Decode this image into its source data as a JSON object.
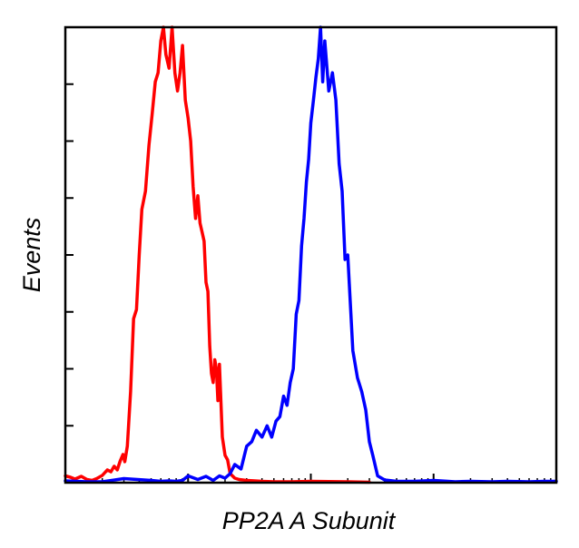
{
  "chart_data": {
    "type": "line",
    "title": "",
    "xlabel": "PP2A A Subunit",
    "ylabel": "Events",
    "x_scale": "log",
    "xlim": [
      1,
      10000
    ],
    "ylim": [
      0,
      100
    ],
    "grid": false,
    "legend": "none",
    "series": [
      {
        "color": "#ff0000",
        "x": [
          1,
          1.1,
          1.2,
          1.35,
          1.5,
          1.65,
          1.8,
          2,
          2.2,
          2.35,
          2.5,
          2.65,
          2.8,
          2.95,
          3.05,
          3.2,
          3.4,
          3.6,
          3.8,
          4,
          4.2,
          4.5,
          4.8,
          5.1,
          5.4,
          5.7,
          6,
          6.3,
          6.6,
          7,
          7.4,
          7.8,
          8.2,
          8.6,
          9,
          9.5,
          10,
          10.5,
          11,
          11.5,
          12,
          12.5,
          13,
          13.5,
          14,
          14.5,
          15,
          15.5,
          16,
          16.5,
          17,
          17.5,
          18,
          19,
          20,
          21,
          22,
          24,
          26,
          30,
          35,
          40,
          50,
          70,
          100,
          200,
          300
        ],
        "y": [
          1.5,
          1.2,
          0.8,
          1.4,
          0.7,
          0.5,
          0.9,
          1.6,
          2.8,
          2.4,
          3.6,
          2.8,
          4.8,
          6.2,
          4.6,
          8,
          20,
          36,
          38,
          50,
          60,
          64,
          74,
          81,
          88,
          90,
          97,
          100,
          94,
          91,
          100,
          90,
          86,
          90,
          96,
          84,
          80,
          75,
          65,
          58,
          63,
          57,
          55,
          53,
          44,
          42,
          30,
          24,
          22,
          27,
          25,
          18,
          26,
          10,
          6,
          5,
          2,
          1,
          0.7,
          0.5,
          0.4,
          0.3,
          0.2,
          0.2,
          0.3,
          0.2,
          0.1
        ]
      },
      {
        "color": "#0000ff",
        "x": [
          1,
          1.5,
          2,
          3,
          5,
          6,
          7,
          8,
          9,
          10,
          12,
          14,
          16,
          18,
          20,
          22,
          24,
          27,
          30,
          33,
          36,
          40,
          44,
          48,
          52,
          56,
          60,
          64,
          68,
          72,
          76,
          80,
          84,
          88,
          92,
          96,
          100,
          105,
          110,
          115,
          120,
          125,
          130,
          140,
          150,
          160,
          170,
          180,
          190,
          200,
          220,
          240,
          260,
          280,
          300,
          320,
          350,
          400,
          500,
          700,
          1000,
          1500,
          2000,
          3000,
          4000,
          6000,
          8000,
          10000
        ],
        "y": [
          0.4,
          0.2,
          0.2,
          0.9,
          0.5,
          0.3,
          0.4,
          0.3,
          0.5,
          1.5,
          0.7,
          1.4,
          0.5,
          1.5,
          1,
          2,
          4,
          3,
          8,
          9,
          11.5,
          10,
          12.5,
          10,
          13.5,
          14.5,
          19,
          17,
          22,
          25,
          37,
          40,
          52,
          58,
          66,
          71,
          79,
          84,
          89,
          93,
          100,
          88,
          97,
          86,
          90,
          84,
          70,
          64,
          49,
          50,
          29,
          23,
          20,
          16,
          9,
          6,
          1.5,
          0.6,
          0.3,
          0.3,
          0.5,
          0.2,
          0.3,
          0.2,
          0.3,
          0.2,
          0.3,
          0.3
        ]
      }
    ]
  }
}
